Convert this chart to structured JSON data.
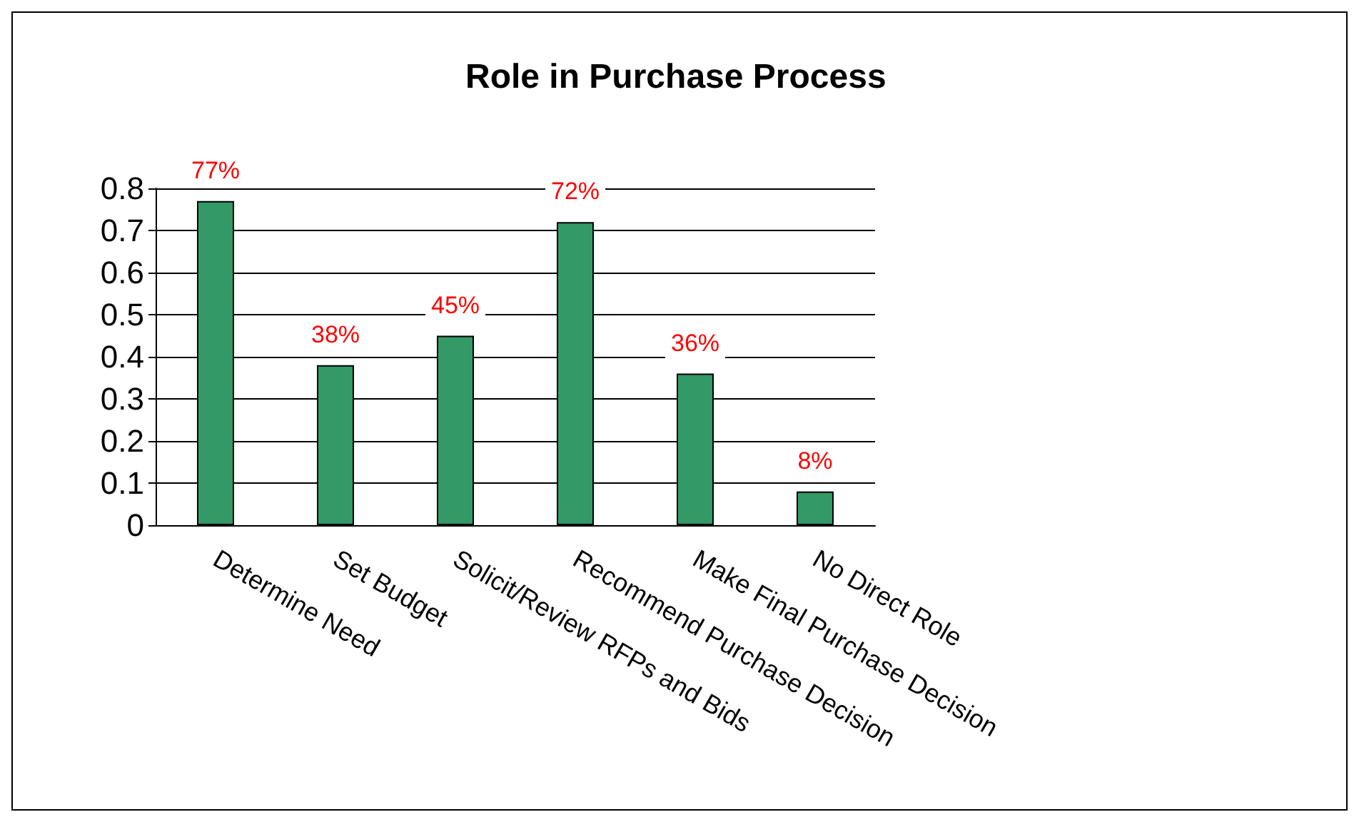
{
  "chart_data": {
    "type": "bar",
    "title": "Role in Purchase Process",
    "categories": [
      "Determine Need",
      "Set Budget",
      "Solicit/Review RFPs and Bids",
      "Recommend Purchase Decision",
      "Make Final Purchase Decision",
      "No Direct Role"
    ],
    "values": [
      0.77,
      0.38,
      0.45,
      0.72,
      0.36,
      0.08
    ],
    "value_labels": [
      "77%",
      "38%",
      "45%",
      "72%",
      "36%",
      "8%"
    ],
    "color": "#339966",
    "ylim": [
      0,
      0.8
    ],
    "yticks": [
      0,
      0.1,
      0.2,
      0.3,
      0.4,
      0.5,
      0.6,
      0.7,
      0.8
    ],
    "grid": "y"
  }
}
